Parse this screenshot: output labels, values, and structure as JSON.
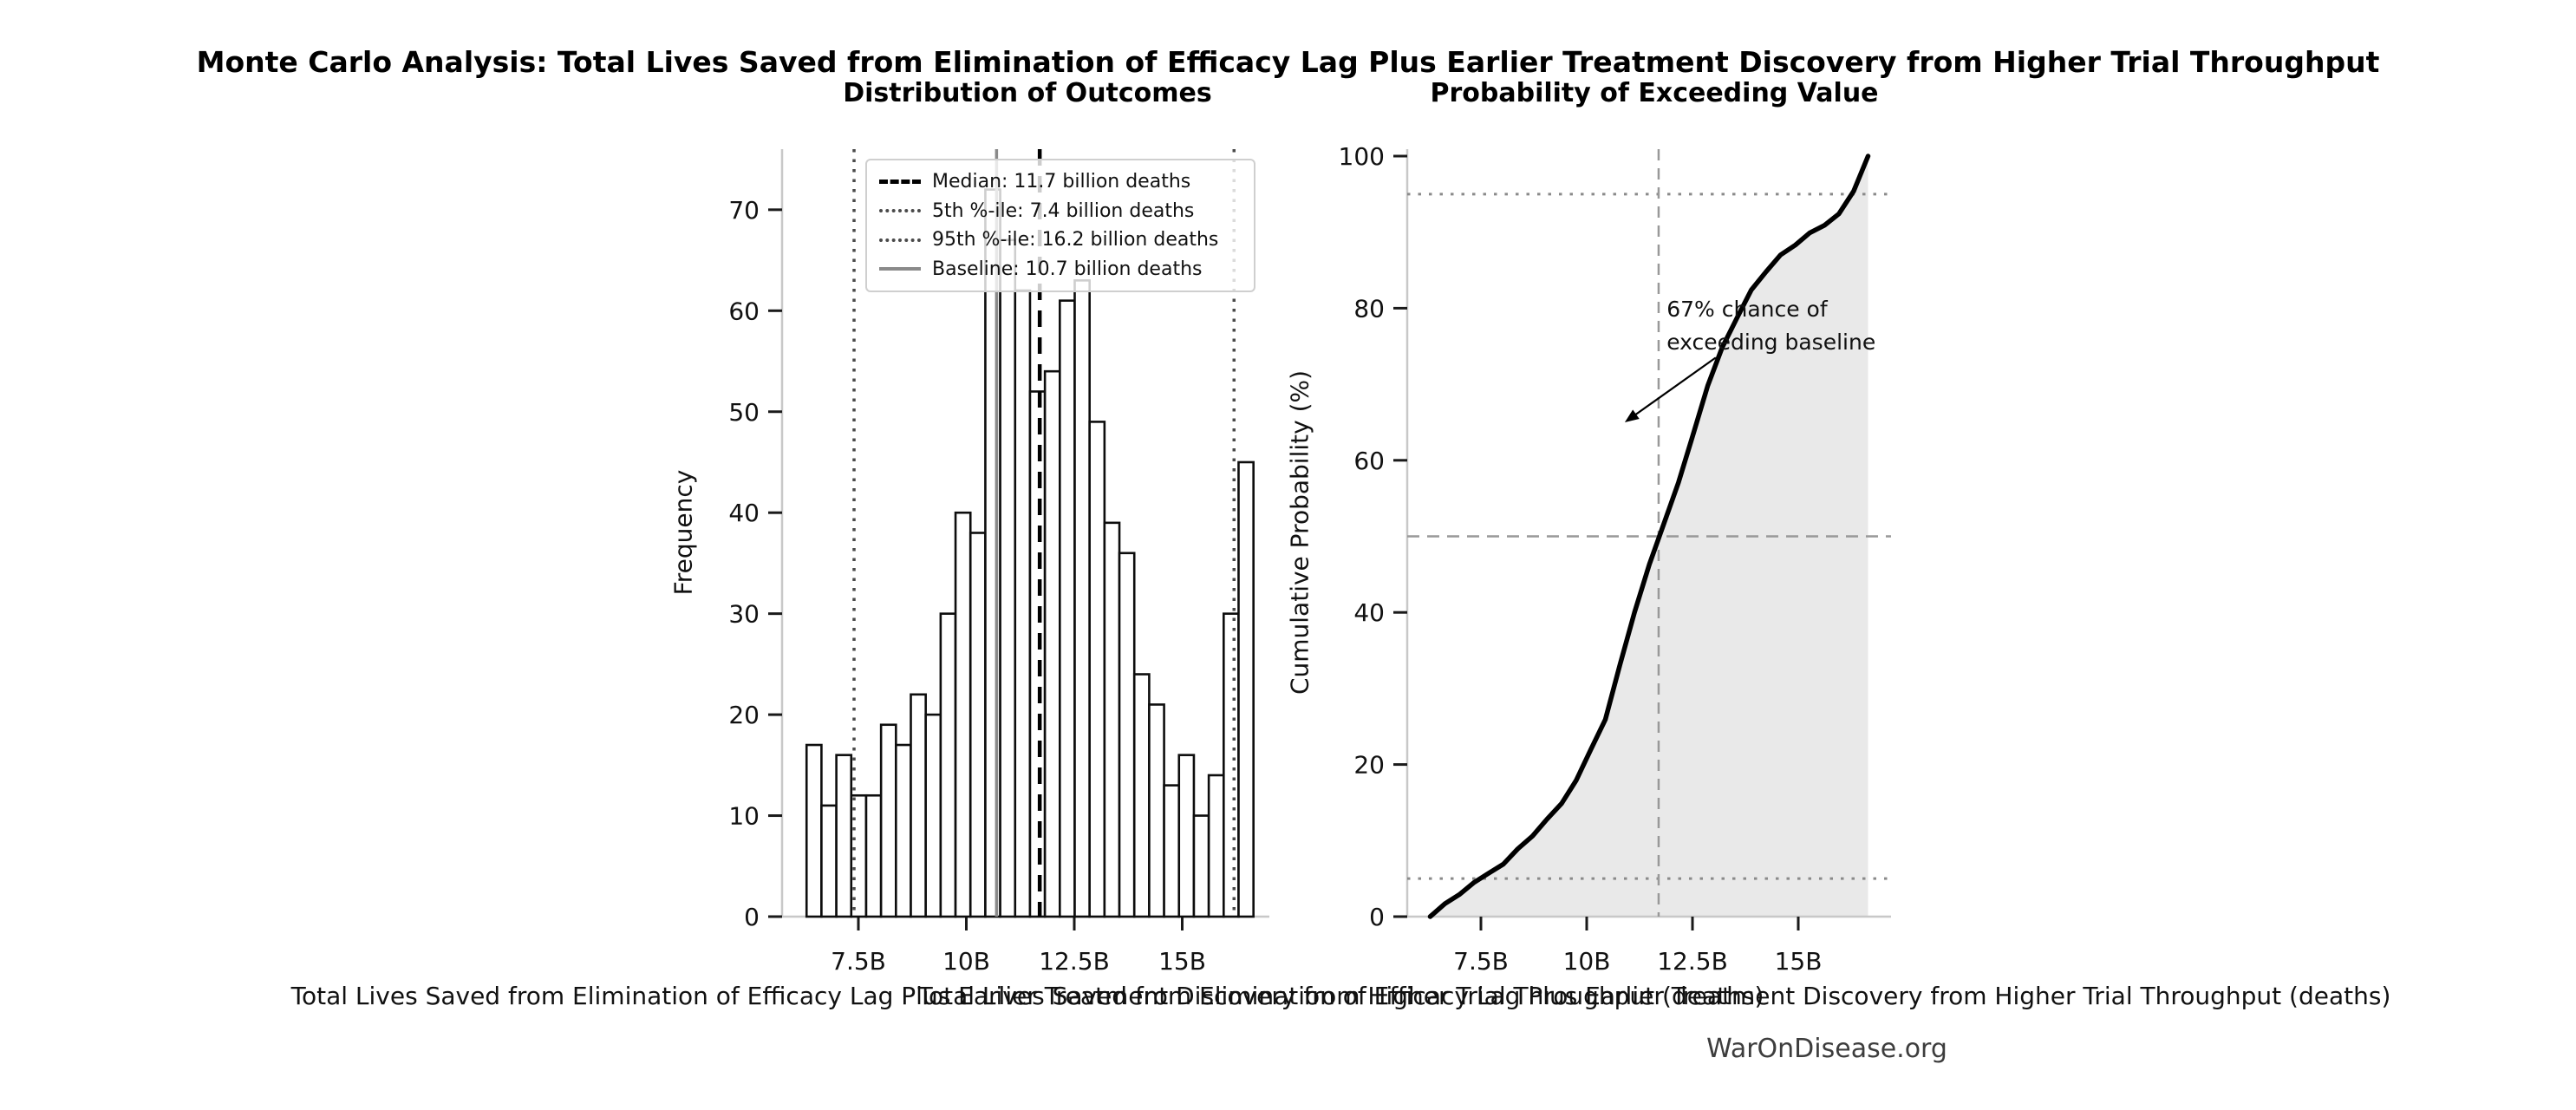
{
  "title": "Monte Carlo Analysis: Total Lives Saved from Elimination of Efficacy Lag Plus Earlier Treatment Discovery from Higher Trial Throughput",
  "footer": "WarOnDisease.org",
  "colors": {
    "bar_fill": "#ffffff",
    "bar_edge": "#0d0d0d",
    "median_line": "#000000",
    "percentile_line": "#4a4a4a",
    "baseline_line": "#8a8a8a",
    "curve": "#000000",
    "shade": "#e9e9e9",
    "gray_dashed": "#999999",
    "spine": "#c8c8c8",
    "tick": "#1a1a1a",
    "footer_text": "#3d3d3d"
  },
  "chart_data": [
    {
      "type": "bar",
      "title": "Distribution of Outcomes",
      "xlabel": "Total Lives Saved from Elimination of Efficacy Lag Plus Earlier Treatment Discovery from Higher Trial Throughput (deaths)",
      "ylabel": "Frequency",
      "bin_start": 6.3,
      "bin_width": 0.345,
      "values": [
        17,
        11,
        16,
        12,
        12,
        19,
        17,
        22,
        20,
        30,
        40,
        38,
        72,
        67,
        62,
        52,
        54,
        61,
        63,
        49,
        39,
        36,
        24,
        21,
        13,
        16,
        10,
        14,
        30,
        45
      ],
      "xlim": [
        5.76,
        17.05
      ],
      "ylim": [
        0,
        76
      ],
      "grid": false,
      "legend_position": "upper right",
      "xticks": [
        {
          "value": 7.5,
          "label": "7.5B"
        },
        {
          "value": 10,
          "label": "10B"
        },
        {
          "value": 12.5,
          "label": "12.5B"
        },
        {
          "value": 15,
          "label": "15B"
        }
      ],
      "yticks": [
        {
          "value": 0,
          "label": "0"
        },
        {
          "value": 10,
          "label": "10"
        },
        {
          "value": 20,
          "label": "20"
        },
        {
          "value": 30,
          "label": "30"
        },
        {
          "value": 40,
          "label": "40"
        },
        {
          "value": 50,
          "label": "50"
        },
        {
          "value": 60,
          "label": "60"
        },
        {
          "value": 70,
          "label": "70"
        }
      ],
      "lines": [
        {
          "label": "Median: 11.7 billion deaths",
          "value": 11.7,
          "style": "dashed",
          "color": "#000000",
          "width": 4.5
        },
        {
          "label": "5th %-ile: 7.4 billion deaths",
          "value": 7.4,
          "style": "dotted",
          "color": "#4a4a4a",
          "width": 3.5
        },
        {
          "label": "95th %-ile: 16.2 billion deaths",
          "value": 16.2,
          "style": "dotted",
          "color": "#4a4a4a",
          "width": 3.5
        },
        {
          "label": "Baseline: 10.7 billion deaths",
          "value": 10.7,
          "style": "solid",
          "color": "#8a8a8a",
          "width": 3.5
        }
      ]
    },
    {
      "type": "line",
      "title": "Probability of Exceeding Value",
      "xlabel": "Total Lives Saved from Elimination of Efficacy Lag Plus Earlier Treatment Discovery from Higher Trial Throughput (deaths)",
      "ylabel": "Cumulative Probability (%)",
      "fill_under": true,
      "points": [
        [
          6.3,
          0
        ],
        [
          6.65,
          1.7
        ],
        [
          6.99,
          2.9
        ],
        [
          7.34,
          4.5
        ],
        [
          7.68,
          5.7
        ],
        [
          8.03,
          6.9
        ],
        [
          8.37,
          8.9
        ],
        [
          8.72,
          10.6
        ],
        [
          9.06,
          12.8
        ],
        [
          9.41,
          14.9
        ],
        [
          9.75,
          17.9
        ],
        [
          10.1,
          22.0
        ],
        [
          10.44,
          25.9
        ],
        [
          10.79,
          33.2
        ],
        [
          11.13,
          40.0
        ],
        [
          11.48,
          46.3
        ],
        [
          11.82,
          51.6
        ],
        [
          12.17,
          57.1
        ],
        [
          12.51,
          63.3
        ],
        [
          12.86,
          69.8
        ],
        [
          13.2,
          74.8
        ],
        [
          13.55,
          78.7
        ],
        [
          13.89,
          82.4
        ],
        [
          14.24,
          84.8
        ],
        [
          14.58,
          87.0
        ],
        [
          14.93,
          88.3
        ],
        [
          15.27,
          89.9
        ],
        [
          15.62,
          90.9
        ],
        [
          15.96,
          92.4
        ],
        [
          16.31,
          95.4
        ],
        [
          16.65,
          100
        ]
      ],
      "xlim": [
        5.76,
        17.05
      ],
      "ylim": [
        0,
        100
      ],
      "grid": false,
      "xticks": [
        {
          "value": 7.5,
          "label": "7.5B"
        },
        {
          "value": 10,
          "label": "10B"
        },
        {
          "value": 12.5,
          "label": "12.5B"
        },
        {
          "value": 15,
          "label": "15B"
        }
      ],
      "yticks": [
        {
          "value": 0,
          "label": "0"
        },
        {
          "value": 20,
          "label": "20"
        },
        {
          "value": 40,
          "label": "40"
        },
        {
          "value": 60,
          "label": "60"
        },
        {
          "value": 80,
          "label": "80"
        },
        {
          "value": 100,
          "label": "100"
        }
      ],
      "hlines": [
        {
          "value": 50,
          "style": "dashed"
        },
        {
          "value": 5,
          "style": "dotted"
        },
        {
          "value": 95,
          "style": "dotted"
        }
      ],
      "vlines": [
        {
          "value": 11.7,
          "style": "dashed"
        }
      ],
      "annotation": {
        "lines": [
          "67% chance of",
          "exceeding baseline"
        ],
        "text_x": 11.89,
        "text_y": 82.0,
        "arrow_from": [
          13.05,
          73.5
        ],
        "arrow_to": [
          10.9,
          65.0
        ]
      }
    }
  ]
}
